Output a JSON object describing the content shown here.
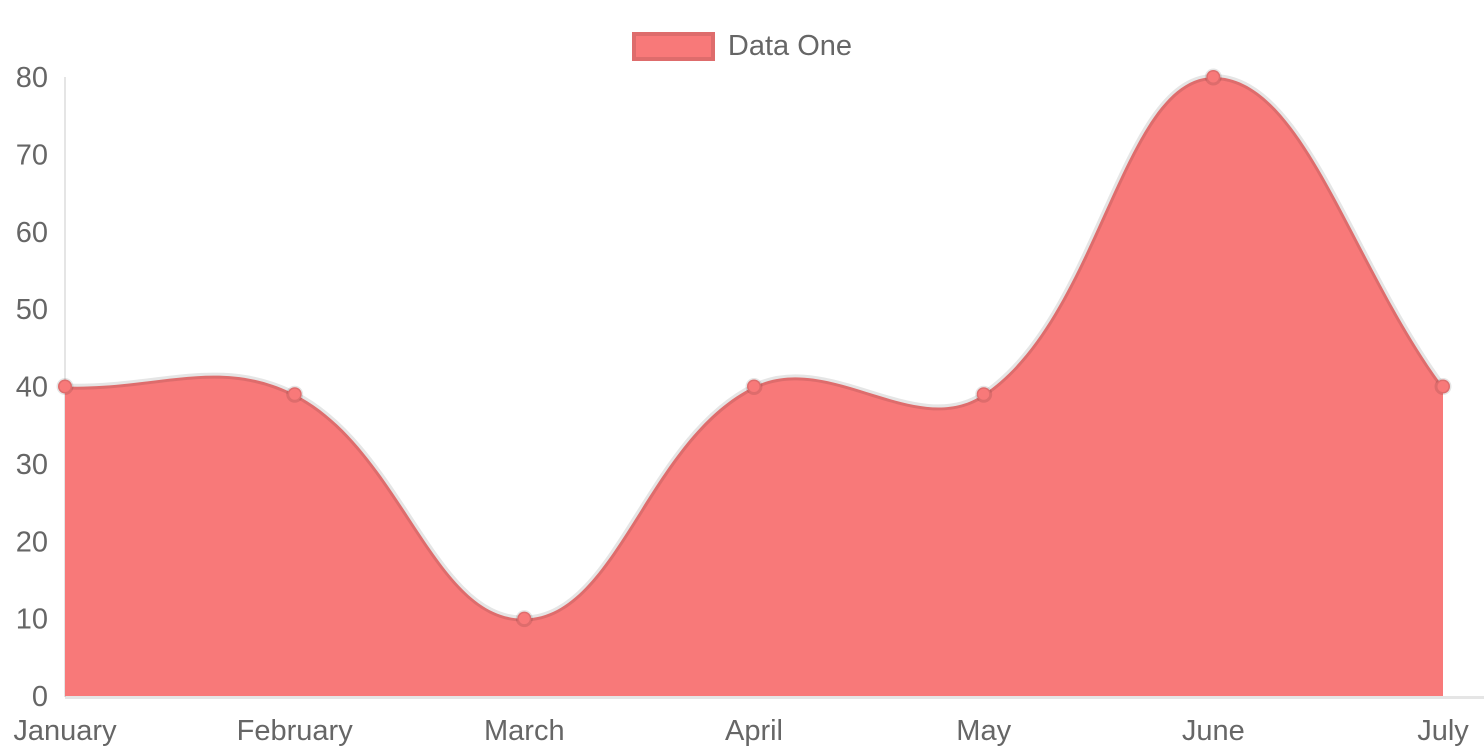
{
  "chart_data": {
    "type": "area",
    "title": "",
    "categories": [
      "January",
      "February",
      "March",
      "April",
      "May",
      "June",
      "July"
    ],
    "series": [
      {
        "name": "Data One",
        "values": [
          40,
          39,
          10,
          40,
          39,
          80,
          40
        ]
      }
    ],
    "xlabel": "",
    "ylabel": "",
    "ylim": [
      0,
      80
    ],
    "ytick_step": 10,
    "ytick_labels": [
      "0",
      "10",
      "20",
      "30",
      "40",
      "50",
      "60",
      "70",
      "80"
    ],
    "grid": "off",
    "legend_position": "top",
    "curve_tension": 0.4,
    "colors": {
      "fill": "#f87979",
      "line": "rgba(0,0,0,0.10)",
      "point_fill": "#f87979",
      "point_border": "rgba(0,0,0,0.10)",
      "axis_line": "rgba(0,0,0,0.10)",
      "tick_label": "#666666",
      "legend_label": "#666666",
      "legend_border": "rgba(0,0,0,0.10)"
    }
  }
}
